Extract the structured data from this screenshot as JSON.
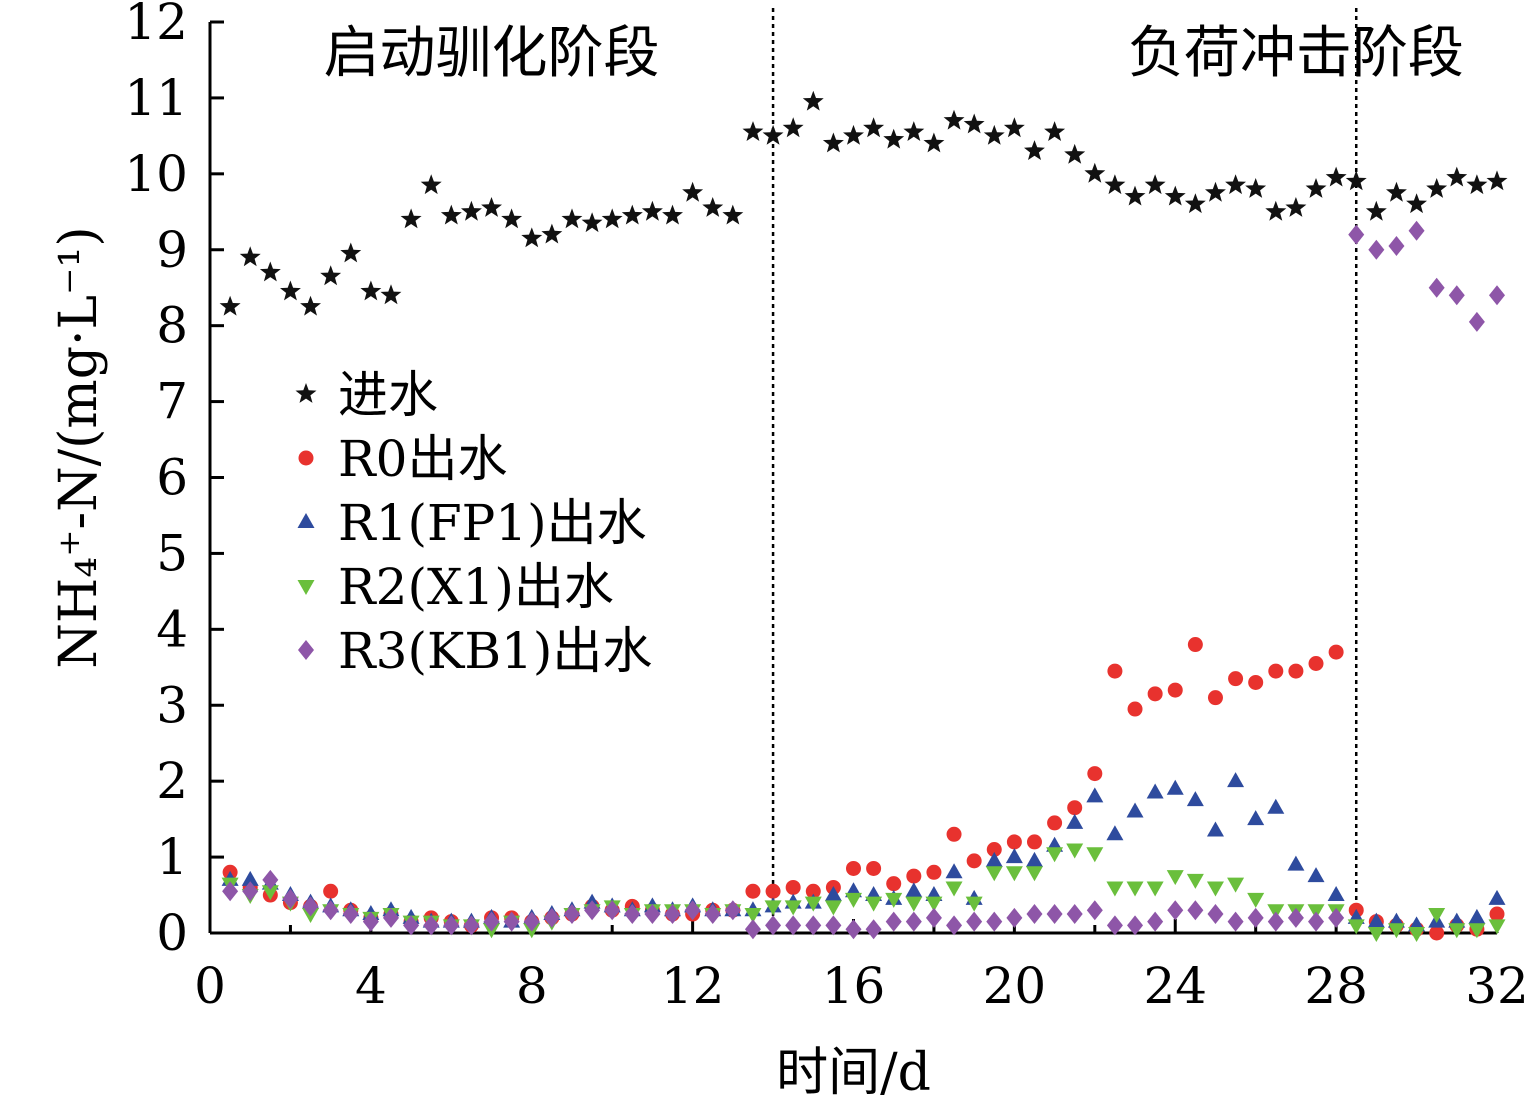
{
  "chart_data": {
    "type": "scatter",
    "xlabel": "时间/d",
    "ylabel": "NH₄⁺-N/(mg·L⁻¹)",
    "xlim": [
      0,
      32
    ],
    "ylim": [
      0,
      12
    ],
    "xticks": [
      0,
      4,
      8,
      12,
      16,
      20,
      24,
      28,
      32
    ],
    "yticks": [
      0,
      1,
      2,
      3,
      4,
      5,
      6,
      7,
      8,
      9,
      10,
      11,
      12
    ],
    "grid": false,
    "legend_position": "left-middle",
    "annotations": [
      {
        "text": "启动驯化阶段",
        "x": 7
      },
      {
        "text": "负荷冲击阶段",
        "x": 27
      }
    ],
    "vlines": [
      14,
      28.5
    ],
    "series": [
      {
        "name": "进水",
        "marker": "star",
        "color": "#111111",
        "x": [
          0.5,
          1,
          1.5,
          2,
          2.5,
          3,
          3.5,
          4,
          4.5,
          5,
          5.5,
          6,
          6.5,
          7,
          7.5,
          8,
          8.5,
          9,
          9.5,
          10,
          10.5,
          11,
          11.5,
          12,
          12.5,
          13,
          13.5,
          14,
          14.5,
          15,
          15.5,
          16,
          16.5,
          17,
          17.5,
          18,
          18.5,
          19,
          19.5,
          20,
          20.5,
          21,
          21.5,
          22,
          22.5,
          23,
          23.5,
          24,
          24.5,
          25,
          25.5,
          26,
          26.5,
          27,
          27.5,
          28,
          28.5,
          29,
          29.5,
          30,
          30.5,
          31,
          31.5,
          32
        ],
        "y": [
          8.25,
          8.9,
          8.7,
          8.45,
          8.25,
          8.65,
          8.95,
          8.45,
          8.4,
          9.4,
          9.85,
          9.45,
          9.5,
          9.55,
          9.4,
          9.15,
          9.2,
          9.4,
          9.35,
          9.4,
          9.45,
          9.5,
          9.45,
          9.75,
          9.55,
          9.45,
          10.55,
          10.5,
          10.6,
          10.95,
          10.4,
          10.5,
          10.6,
          10.45,
          10.55,
          10.4,
          10.7,
          10.65,
          10.5,
          10.6,
          10.3,
          10.55,
          10.25,
          10.0,
          9.85,
          9.7,
          9.85,
          9.7,
          9.6,
          9.75,
          9.85,
          9.8,
          9.5,
          9.55,
          9.8,
          9.95,
          9.9,
          9.5,
          9.75,
          9.6,
          9.8,
          9.95,
          9.85,
          9.9
        ]
      },
      {
        "name": "R0出水",
        "marker": "circle",
        "color": "#e8322e",
        "x": [
          0.5,
          1,
          1.5,
          2,
          2.5,
          3,
          3.5,
          4,
          4.5,
          5,
          5.5,
          6,
          6.5,
          7,
          7.5,
          8,
          8.5,
          9,
          9.5,
          10,
          10.5,
          11,
          11.5,
          12,
          12.5,
          13,
          13.5,
          14,
          14.5,
          15,
          15.5,
          16,
          16.5,
          17,
          17.5,
          18,
          18.5,
          19,
          19.5,
          20,
          20.5,
          21,
          21.5,
          22,
          22.5,
          23,
          23.5,
          24,
          24.5,
          25,
          25.5,
          26,
          26.5,
          27,
          27.5,
          28,
          28.5,
          29,
          29.5,
          30,
          30.5,
          31,
          31.5,
          32
        ],
        "y": [
          0.8,
          0.6,
          0.5,
          0.4,
          0.35,
          0.55,
          0.3,
          0.2,
          0.25,
          0.15,
          0.2,
          0.15,
          0.1,
          0.2,
          0.2,
          0.15,
          0.2,
          0.25,
          0.35,
          0.3,
          0.35,
          0.3,
          0.25,
          0.25,
          0.3,
          0.3,
          0.55,
          0.55,
          0.6,
          0.55,
          0.6,
          0.85,
          0.85,
          0.65,
          0.75,
          0.8,
          1.3,
          0.95,
          1.1,
          1.2,
          1.2,
          1.45,
          1.65,
          2.1,
          3.45,
          2.95,
          3.15,
          3.2,
          3.8,
          3.1,
          3.35,
          3.3,
          3.45,
          3.45,
          3.55,
          3.7,
          0.3,
          0.15,
          0.1,
          0.05,
          0.0,
          0.1,
          0.05,
          0.25
        ]
      },
      {
        "name": "R1(FP1)出水",
        "marker": "triangle-up",
        "color": "#2e4b9e",
        "x": [
          0.5,
          1,
          1.5,
          2,
          2.5,
          3,
          3.5,
          4,
          4.5,
          5,
          5.5,
          6,
          6.5,
          7,
          7.5,
          8,
          8.5,
          9,
          9.5,
          10,
          10.5,
          11,
          11.5,
          12,
          12.5,
          13,
          13.5,
          14,
          14.5,
          15,
          15.5,
          16,
          16.5,
          17,
          17.5,
          18,
          18.5,
          19,
          19.5,
          20,
          20.5,
          21,
          21.5,
          22,
          22.5,
          23,
          23.5,
          24,
          24.5,
          25,
          25.5,
          26,
          26.5,
          27,
          27.5,
          28,
          28.5,
          29,
          29.5,
          30,
          30.5,
          31,
          31.5,
          32
        ],
        "y": [
          0.7,
          0.7,
          0.65,
          0.5,
          0.4,
          0.35,
          0.3,
          0.25,
          0.3,
          0.2,
          0.15,
          0.15,
          0.15,
          0.2,
          0.15,
          0.2,
          0.25,
          0.3,
          0.4,
          0.35,
          0.3,
          0.35,
          0.3,
          0.35,
          0.3,
          0.3,
          0.3,
          0.35,
          0.4,
          0.4,
          0.5,
          0.55,
          0.5,
          0.45,
          0.55,
          0.5,
          0.8,
          0.45,
          0.95,
          1.0,
          0.95,
          1.15,
          1.45,
          1.8,
          1.3,
          1.6,
          1.85,
          1.9,
          1.75,
          1.35,
          2.0,
          1.5,
          1.65,
          0.9,
          0.75,
          0.5,
          0.2,
          0.15,
          0.15,
          0.1,
          0.15,
          0.15,
          0.2,
          0.45
        ]
      },
      {
        "name": "R2(X1)出水",
        "marker": "triangle-down",
        "color": "#6abf3c",
        "x": [
          0.5,
          1,
          1.5,
          2,
          2.5,
          3,
          3.5,
          4,
          4.5,
          5,
          5.5,
          6,
          6.5,
          7,
          7.5,
          8,
          8.5,
          9,
          9.5,
          10,
          10.5,
          11,
          11.5,
          12,
          12.5,
          13,
          13.5,
          14,
          14.5,
          15,
          15.5,
          16,
          16.5,
          17,
          17.5,
          18,
          18.5,
          19,
          19.5,
          20,
          20.5,
          21,
          21.5,
          22,
          22.5,
          23,
          23.5,
          24,
          24.5,
          25,
          25.5,
          26,
          26.5,
          27,
          27.5,
          28,
          28.5,
          29,
          29.5,
          30,
          30.5,
          31,
          31.5,
          32
        ],
        "y": [
          0.65,
          0.5,
          0.55,
          0.4,
          0.25,
          0.3,
          0.25,
          0.2,
          0.25,
          0.15,
          0.15,
          0.1,
          0.1,
          0.05,
          0.15,
          0.05,
          0.15,
          0.25,
          0.3,
          0.35,
          0.25,
          0.3,
          0.3,
          0.3,
          0.25,
          0.3,
          0.25,
          0.35,
          0.35,
          0.4,
          0.35,
          0.45,
          0.4,
          0.45,
          0.4,
          0.4,
          0.6,
          0.4,
          0.8,
          0.8,
          0.8,
          1.05,
          1.1,
          1.05,
          0.6,
          0.6,
          0.6,
          0.75,
          0.7,
          0.6,
          0.65,
          0.45,
          0.3,
          0.3,
          0.3,
          0.3,
          0.1,
          0.0,
          0.05,
          0.0,
          0.25,
          0.05,
          0.05,
          0.1
        ]
      },
      {
        "name": "R3(KB1)出水",
        "marker": "diamond",
        "color": "#8e56a8",
        "x": [
          0.5,
          1,
          1.5,
          2,
          2.5,
          3,
          3.5,
          4,
          4.5,
          5,
          5.5,
          6,
          6.5,
          7,
          7.5,
          8,
          8.5,
          9,
          9.5,
          10,
          10.5,
          11,
          11.5,
          12,
          12.5,
          13,
          13.5,
          14,
          14.5,
          15,
          15.5,
          16,
          16.5,
          17,
          17.5,
          18,
          18.5,
          19,
          19.5,
          20,
          20.5,
          21,
          21.5,
          22,
          22.5,
          23,
          23.5,
          24,
          24.5,
          25,
          25.5,
          26,
          26.5,
          27,
          27.5,
          28,
          28.5,
          29,
          29.5,
          30,
          30.5,
          31,
          31.5,
          32
        ],
        "y": [
          0.55,
          0.55,
          0.7,
          0.45,
          0.35,
          0.3,
          0.25,
          0.15,
          0.2,
          0.1,
          0.1,
          0.1,
          0.1,
          0.15,
          0.15,
          0.15,
          0.2,
          0.25,
          0.3,
          0.3,
          0.25,
          0.25,
          0.25,
          0.3,
          0.25,
          0.3,
          0.05,
          0.1,
          0.1,
          0.1,
          0.1,
          0.05,
          0.05,
          0.15,
          0.15,
          0.2,
          0.1,
          0.15,
          0.15,
          0.2,
          0.25,
          0.25,
          0.25,
          0.3,
          0.1,
          0.1,
          0.15,
          0.3,
          0.3,
          0.25,
          0.15,
          0.2,
          0.15,
          0.2,
          0.15,
          0.2,
          9.2,
          9.0,
          9.05,
          9.25,
          8.5,
          8.4,
          8.05,
          8.4
        ]
      }
    ]
  }
}
